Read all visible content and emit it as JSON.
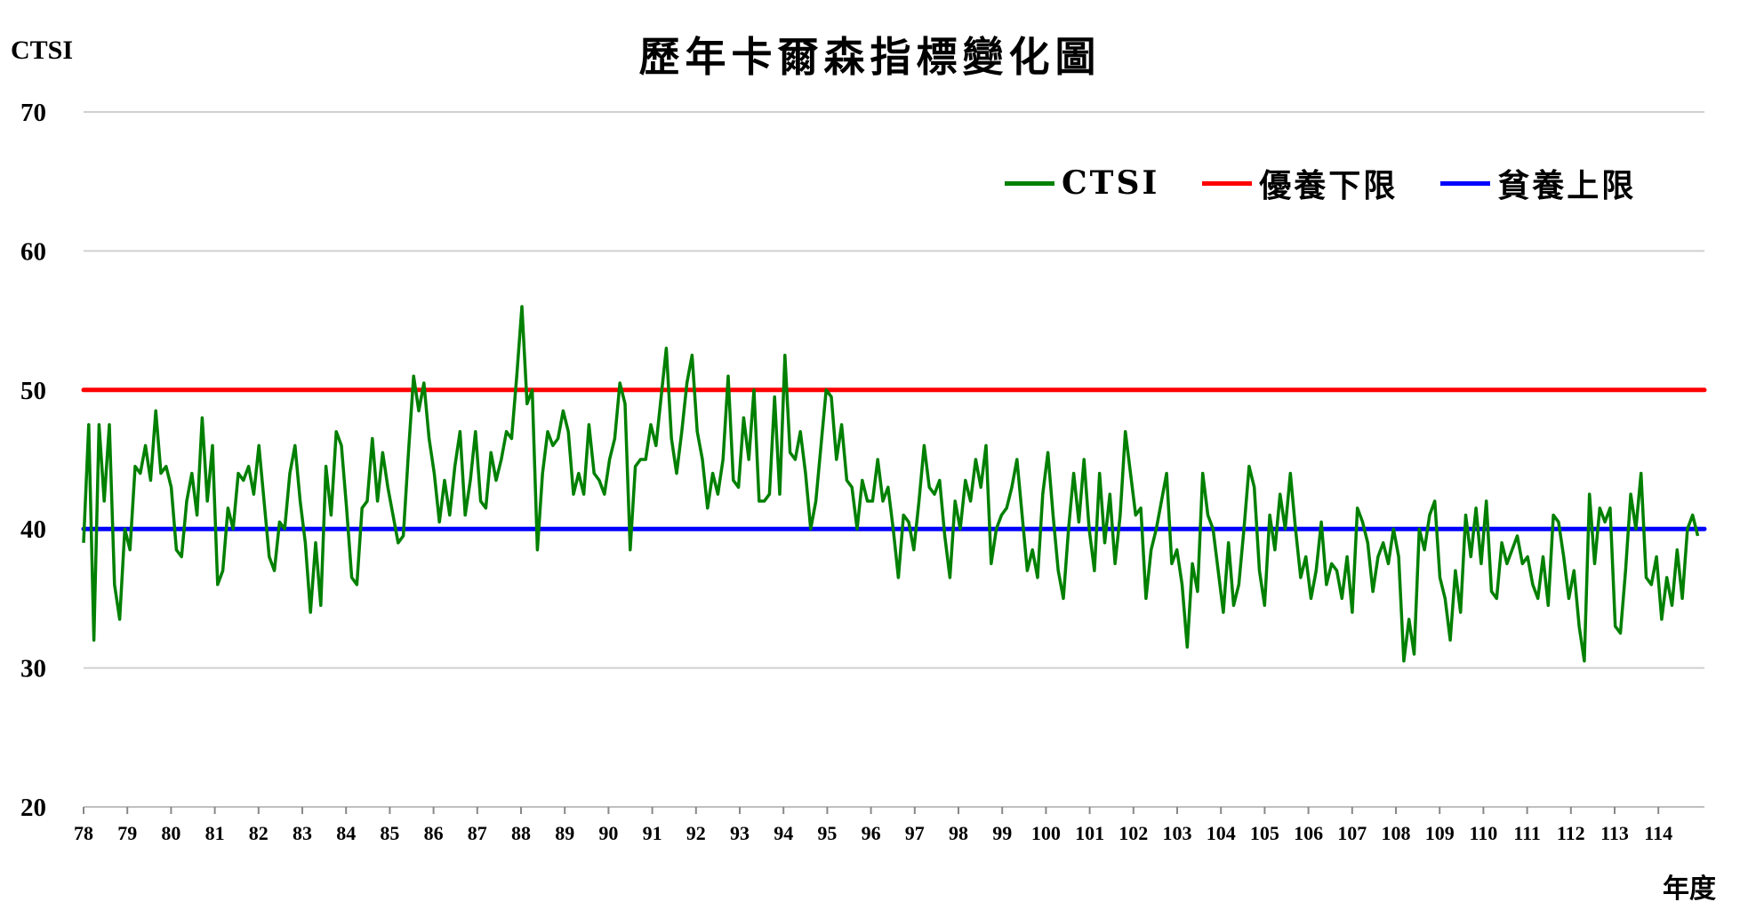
{
  "chart_data": {
    "type": "line",
    "title": "歷年卡爾森指標變化圖",
    "ylabel": "CTSI",
    "xlabel": "年度",
    "ylim": [
      20,
      70
    ],
    "yticks": [
      "20",
      "30",
      "40",
      "50",
      "60",
      "70"
    ],
    "xlim": [
      78,
      114.9
    ],
    "xticks": [
      "78",
      "79",
      "80",
      "81",
      "82",
      "83",
      "84",
      "85",
      "86",
      "87",
      "88",
      "89",
      "90",
      "91",
      "92",
      "93",
      "94",
      "95",
      "96",
      "97",
      "98",
      "99",
      "100",
      "101",
      "102",
      "103",
      "104",
      "105",
      "106",
      "107",
      "108",
      "109",
      "110",
      "111",
      "112",
      "113",
      "114"
    ],
    "grid": true,
    "legend_position": "top-right",
    "series": [
      {
        "name": "CTSI",
        "color": "#008000",
        "values": [
          39,
          47.5,
          32,
          47.5,
          42,
          47.5,
          36,
          33.5,
          40,
          38.5,
          44.5,
          44,
          46,
          43.5,
          48.5,
          44,
          44.5,
          43,
          38.5,
          38,
          42,
          44,
          41,
          48,
          42,
          46,
          36,
          37,
          41.5,
          40,
          44,
          43.5,
          44.5,
          42.5,
          46,
          42,
          38,
          37,
          40.5,
          40,
          44,
          46,
          42,
          39,
          34,
          39,
          34.5,
          44.5,
          41,
          47,
          46,
          41.5,
          36.5,
          36,
          41.5,
          42,
          46.5,
          42,
          45.5,
          43,
          41,
          39,
          39.5,
          45.5,
          51,
          48.5,
          50.5,
          46.5,
          44,
          40.5,
          43.5,
          41,
          44.5,
          47,
          41,
          43.5,
          47,
          42,
          41.5,
          45.5,
          43.5,
          45,
          47,
          46.5,
          51,
          56,
          49,
          50,
          38.5,
          44,
          47,
          46,
          46.5,
          48.5,
          47,
          42.5,
          44,
          42.5,
          47.5,
          44,
          43.5,
          42.5,
          45,
          46.5,
          50.5,
          49,
          38.5,
          44.5,
          45,
          45,
          47.5,
          46,
          49.5,
          53,
          46.5,
          44,
          47,
          50.5,
          52.5,
          47,
          45,
          41.5,
          44,
          42.5,
          45,
          51,
          43.5,
          43,
          48,
          45,
          50,
          42,
          42,
          42.5,
          49.5,
          42.5,
          52.5,
          45.5,
          45,
          47,
          44,
          40,
          42,
          46,
          50,
          49.5,
          45,
          47.5,
          43.5,
          43,
          40,
          43.5,
          42,
          42,
          45,
          42,
          43,
          40,
          36.5,
          41,
          40.5,
          38.5,
          42,
          46,
          43,
          42.5,
          43.5,
          39.5,
          36.5,
          42,
          40,
          43.5,
          42,
          45,
          43,
          46,
          37.5,
          40,
          41,
          41.5,
          43,
          45,
          41,
          37,
          38.5,
          36.5,
          42.5,
          45.5,
          41,
          37,
          35,
          40,
          44,
          40.5,
          45,
          40,
          37,
          44,
          39,
          42.5,
          37.5,
          41,
          47,
          44,
          41,
          41.5,
          35,
          38.5,
          40,
          42,
          44,
          37.5,
          38.5,
          36,
          31.5,
          37.5,
          35.5,
          44,
          41,
          40,
          37,
          34,
          39,
          34.5,
          36,
          40,
          44.5,
          43,
          37,
          34.5,
          41,
          38.5,
          42.5,
          40,
          44,
          40,
          36.5,
          38,
          35,
          37,
          40.5,
          36,
          37.5,
          37,
          35,
          38,
          34,
          41.5,
          40.5,
          39,
          35.5,
          38,
          39,
          37.5,
          40,
          38,
          30.5,
          33.5,
          31,
          40,
          38.5,
          41,
          42,
          36.5,
          35,
          32,
          37,
          34,
          41,
          38,
          41.5,
          37.5,
          42,
          35.5,
          35,
          39,
          37.5,
          38.5,
          39.5,
          37.5,
          38,
          36,
          35,
          38,
          34.5,
          41,
          40.5,
          38,
          35,
          37,
          33,
          30.5,
          42.5,
          37.5,
          41.5,
          40.5,
          41.5,
          33,
          32.5,
          37,
          42.5,
          40,
          44,
          36.5,
          36,
          38,
          33.5,
          36.5,
          34.5,
          38.5,
          35,
          40,
          41,
          39.5
        ]
      },
      {
        "name": "優養下限",
        "color": "#FF0000",
        "constant": 50
      },
      {
        "name": "貧養上限",
        "color": "#0000FF",
        "constant": 40
      }
    ]
  }
}
